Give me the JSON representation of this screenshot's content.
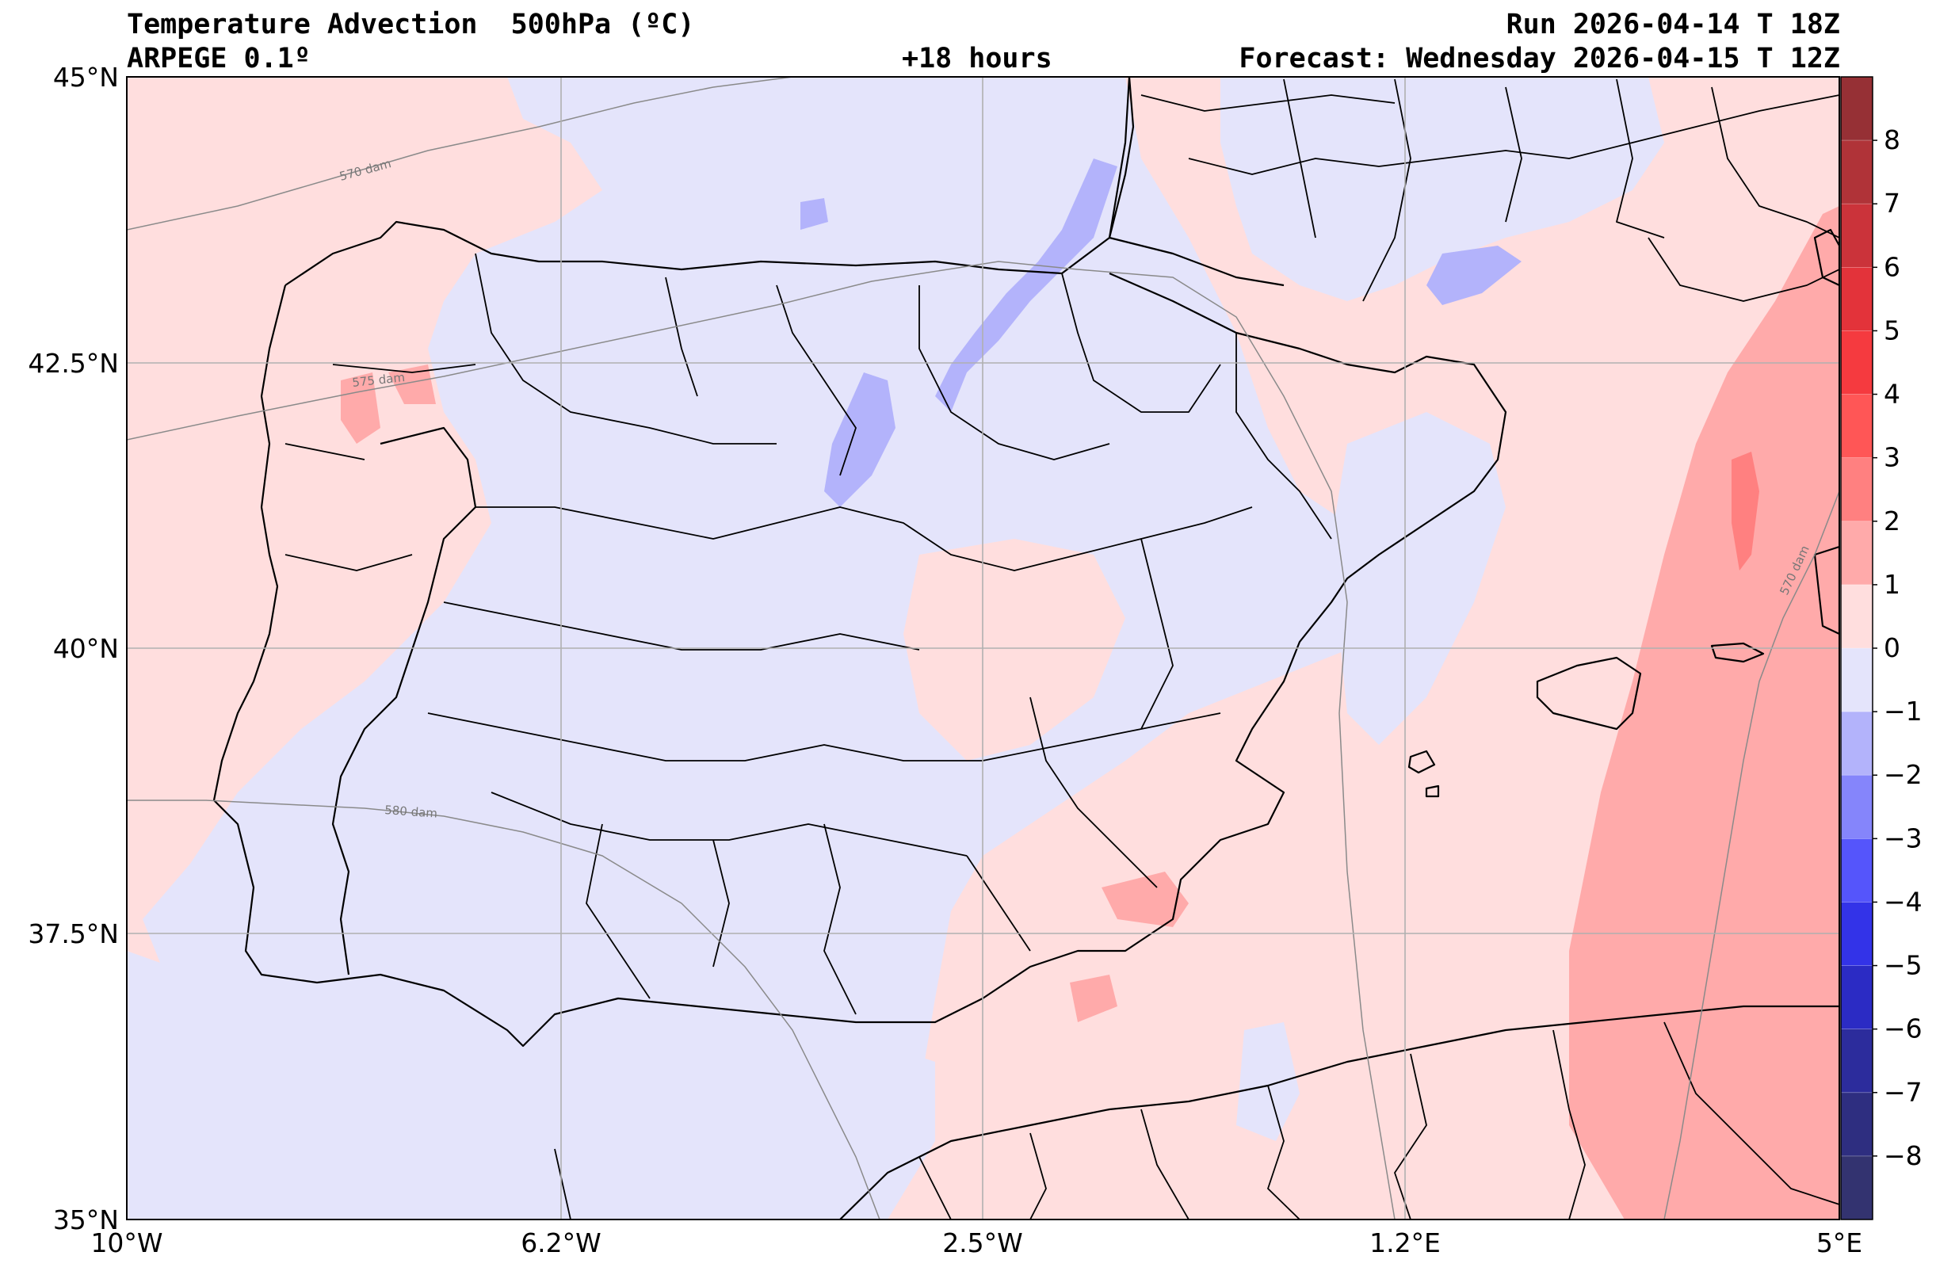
{
  "header": {
    "title": "Temperature Advection  500hPa (ºC)",
    "model": "ARPEGE 0.1º",
    "lead_time": "+18 hours",
    "run": "Run 2026-04-14 T 18Z",
    "forecast": "Forecast: Wednesday 2026-04-15 T 12Z"
  },
  "axes": {
    "lat_ticks": [
      "45°N",
      "42.5°N",
      "40°N",
      "37.5°N",
      "35°N"
    ],
    "lon_ticks": [
      "10°W",
      "6.2°W",
      "2.5°W",
      "1.2°E",
      "5°E"
    ]
  },
  "isohypses": [
    {
      "label": "570 dam"
    },
    {
      "label": "575 dam"
    },
    {
      "label": "580 dam"
    },
    {
      "label": "570 dam"
    }
  ],
  "colorbar": {
    "tick_labels": [
      "8",
      "7",
      "6",
      "5",
      "4",
      "3",
      "2",
      "1",
      "0",
      "−1",
      "−2",
      "−3",
      "−4",
      "−5",
      "−6",
      "−7",
      "−8"
    ],
    "bins": [
      {
        "range": "8 to 9",
        "color": "#963035"
      },
      {
        "range": "7 to 8",
        "color": "#b03338"
      },
      {
        "range": "6 to 7",
        "color": "#cb333a"
      },
      {
        "range": "5 to 6",
        "color": "#e3333a"
      },
      {
        "range": "4 to 5",
        "color": "#f53a3f"
      },
      {
        "range": "3 to 4",
        "color": "#ff5656"
      },
      {
        "range": "2 to 3",
        "color": "#ff8080"
      },
      {
        "range": "1 to 2",
        "color": "#ffaaaa"
      },
      {
        "range": "0 to 1",
        "color": "#ffdede"
      },
      {
        "range": "-1 to 0",
        "color": "#e4e4fb"
      },
      {
        "range": "-2 to -1",
        "color": "#b3b3fb"
      },
      {
        "range": "-3 to -2",
        "color": "#8585fb"
      },
      {
        "range": "-4 to -3",
        "color": "#5555fb"
      },
      {
        "range": "-5 to -4",
        "color": "#3333e8"
      },
      {
        "range": "-6 to -5",
        "color": "#2b2bc4"
      },
      {
        "range": "-7 to -6",
        "color": "#2c2c9c"
      },
      {
        "range": "-8 to -7",
        "color": "#2e2e80"
      },
      {
        "range": "-9 to -8",
        "color": "#333370"
      }
    ]
  },
  "colors": {
    "warm_light": "#ffdede",
    "warm_mid": "#ffaaaa",
    "warm_strong": "#ff8080",
    "cold_light": "#e4e4fb",
    "cold_mid": "#b3b3fb",
    "borders": "#000000",
    "grid": "#b0b0b0",
    "isohypse": "#8a8a8a"
  }
}
